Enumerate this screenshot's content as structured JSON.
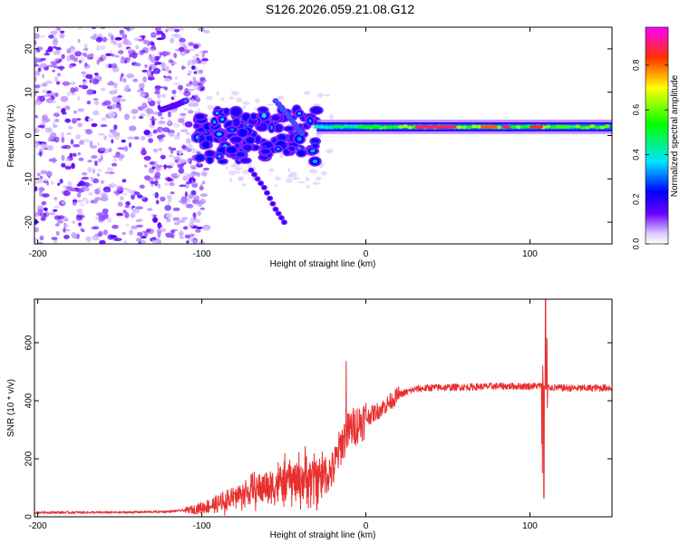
{
  "title": "S126.2026.059.21.08.G12",
  "chart_data": [
    {
      "type": "heatmap",
      "name": "spectrogram",
      "xlabel": "Height of straight line (km)",
      "ylabel": "Frequency (Hz)",
      "xlim": [
        -202,
        150
      ],
      "ylim": [
        -25,
        25
      ],
      "xticks": [
        -200,
        -100,
        0,
        100
      ],
      "yticks": [
        20,
        10,
        0,
        -10,
        -20
      ],
      "colorbar": {
        "label": "Normalized spectral amplitude",
        "range": [
          0,
          0.97
        ],
        "ticks": [
          "0.0",
          "0.2",
          "0.4",
          "0.6",
          "0.8"
        ],
        "tick_values": [
          0,
          0.2,
          0.4,
          0.6,
          0.8
        ],
        "colors": [
          "#ffffff",
          "#6a00ff",
          "#0000ff",
          "#00e5ff",
          "#00ff00",
          "#ffff00",
          "#ff0000",
          "#ff00ff"
        ]
      },
      "features": [
        {
          "name": "noise-region",
          "x_range": [
            -202,
            -97
          ],
          "freq_range": [
            -25,
            25
          ],
          "amplitude": 0.05
        },
        {
          "name": "chirp-burst",
          "x": [
            -124,
            -116,
            -110
          ],
          "freq": [
            6,
            7,
            8
          ],
          "amplitude": 0.35
        },
        {
          "name": "scatter-cluster",
          "x_range": [
            -105,
            -30
          ],
          "freq_range": [
            -6,
            6
          ],
          "amplitude": 0.3
        },
        {
          "name": "descending-streak-1",
          "x": [
            -55,
            -48,
            -42,
            -38
          ],
          "freq": [
            8,
            5,
            2,
            0
          ],
          "amplitude": 0.3
        },
        {
          "name": "descending-streak-2",
          "x": [
            -70,
            -62,
            -55,
            -48
          ],
          "freq": [
            -8,
            -12,
            -17,
            -21
          ],
          "amplitude": 0.2
        },
        {
          "name": "carrier-tone",
          "x_range": [
            -30,
            150
          ],
          "freq": 2,
          "peak_amplitude": 0.95
        }
      ]
    },
    {
      "type": "line",
      "name": "snr",
      "xlabel": "Height of straight line (km)",
      "ylabel": "SNR (10 * v/v)",
      "xlim": [
        -202,
        150
      ],
      "ylim": [
        0,
        750
      ],
      "xticks": [
        -200,
        -100,
        0,
        100
      ],
      "yticks": [
        0,
        200,
        400,
        600
      ],
      "color": "#e83030",
      "series": [
        {
          "name": "SNR",
          "x": [
            -202,
            -150,
            -120,
            -105,
            -90,
            -75,
            -60,
            -45,
            -30,
            -20,
            -15,
            -10,
            0,
            10,
            20,
            30,
            40,
            60,
            80,
            100,
            108,
            110,
            115,
            130,
            150
          ],
          "values": [
            15,
            15,
            18,
            25,
            45,
            80,
            105,
            125,
            135,
            160,
            250,
            300,
            340,
            375,
            420,
            440,
            445,
            447,
            450,
            450,
            452,
            448,
            445,
            443,
            445
          ]
        },
        {
          "name": "spikes",
          "x": [
            -12,
            109.5,
            108.5,
            110.5
          ],
          "values": [
            535,
            750,
            65,
            615
          ]
        }
      ]
    }
  ]
}
